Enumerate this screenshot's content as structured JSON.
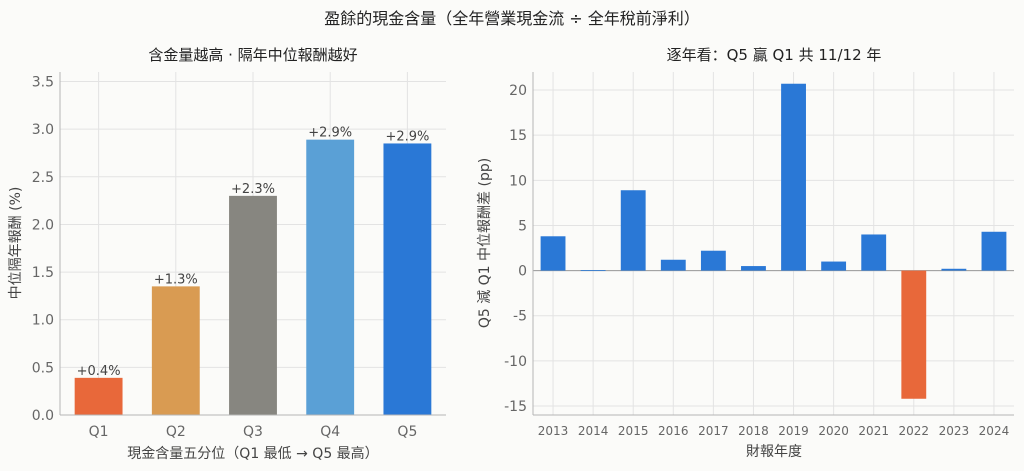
{
  "suptitle": "盈餘的現金含量（全年營業現金流 ÷ 全年稅前淨利）",
  "chart_data": [
    {
      "type": "bar",
      "title": "含金量越高 · 隔年中位報酬越好",
      "xlabel": "現金含量五分位（Q1 最低 → Q5 最高）",
      "ylabel": "中位隔年報酬 (%)",
      "ylim": [
        0,
        3.6
      ],
      "yticks": [
        "0.0",
        "0.5",
        "1.0",
        "1.5",
        "2.0",
        "2.5",
        "3.0",
        "3.5"
      ],
      "categories": [
        "Q1",
        "Q2",
        "Q3",
        "Q4",
        "Q5"
      ],
      "values": [
        0.39,
        1.35,
        2.3,
        2.89,
        2.85
      ],
      "labels": [
        "+0.4%",
        "+1.3%",
        "+2.3%",
        "+2.9%",
        "+2.9%"
      ],
      "colors": [
        "#e8683a",
        "#d99b52",
        "#878680",
        "#5aa0d6",
        "#2a78d6"
      ]
    },
    {
      "type": "bar",
      "title": "逐年看：Q5 贏 Q1 共 11/12 年",
      "xlabel": "財報年度",
      "ylabel": "Q5 減 Q1 中位報酬差 (pp)",
      "ylim": [
        -16,
        22
      ],
      "yticks": [
        "-15",
        "-10",
        "-5",
        "0",
        "5",
        "10",
        "15",
        "20"
      ],
      "categories": [
        "2013",
        "2014",
        "2015",
        "2016",
        "2017",
        "2018",
        "2019",
        "2020",
        "2021",
        "2022",
        "2023",
        "2024"
      ],
      "values": [
        3.8,
        0.05,
        8.9,
        1.2,
        2.2,
        0.5,
        20.7,
        1.0,
        4.0,
        -14.2,
        0.2,
        4.3
      ],
      "pos_color": "#2a78d6",
      "neg_color": "#e8683a"
    }
  ]
}
